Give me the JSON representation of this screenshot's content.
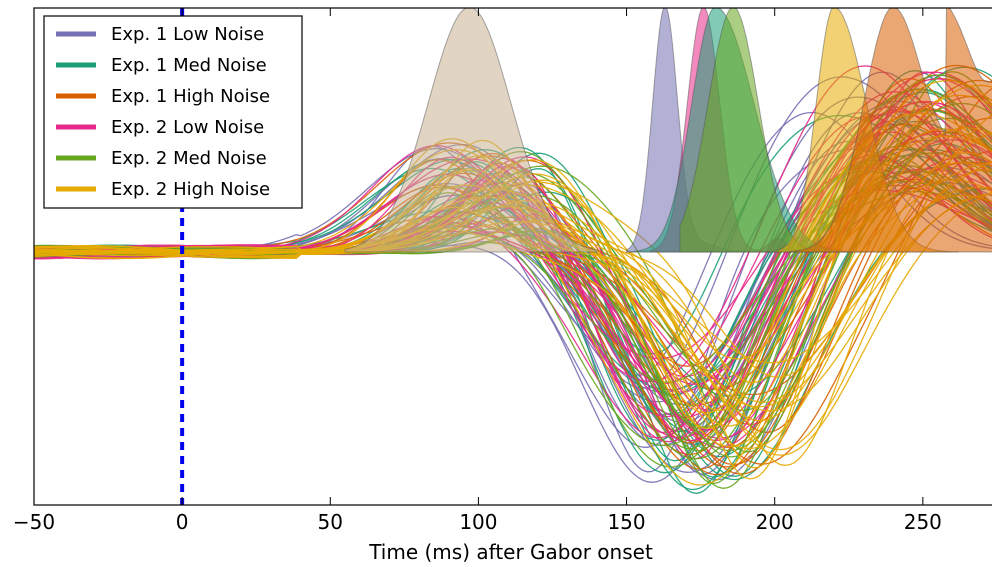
{
  "chart_data": {
    "type": "line",
    "xlabel": "Time (ms) after Gabor onset",
    "ylabel": "",
    "xlim": [
      -50,
      275
    ],
    "xticks": [
      -50,
      0,
      50,
      100,
      150,
      200,
      250
    ],
    "xtick_labels": [
      "−50",
      "0",
      "50",
      "100",
      "150",
      "200",
      "250"
    ],
    "onset_marker": {
      "x": 0,
      "style": "dashed",
      "color": "#0000ee"
    },
    "legend": {
      "placement": "top-left",
      "entries": [
        {
          "label": "Exp. 1 Low Noise",
          "color": "#7570b3"
        },
        {
          "label": "Exp. 1 Med Noise",
          "color": "#1b9e77"
        },
        {
          "label": "Exp. 1 High Noise",
          "color": "#d95f02"
        },
        {
          "label": "Exp. 2 Low Noise",
          "color": "#e7298a"
        },
        {
          "label": "Exp. 2 Med Noise",
          "color": "#66a61e"
        },
        {
          "label": "Exp. 2 High Noise",
          "color": "#e6ab02"
        }
      ]
    },
    "density_peaks": [
      {
        "color": "#c9b08f",
        "peak_x": 97
      },
      {
        "color": "#7570b3",
        "peak_x": 163
      },
      {
        "color": "#e7298a",
        "peak_x": 176
      },
      {
        "color": "#1b9e77",
        "peak_x": 180
      },
      {
        "color": "#66a61e",
        "peak_x": 186
      },
      {
        "color": "#e6ab02",
        "peak_x": 220
      },
      {
        "color": "#d95f02",
        "peak_x": 240
      }
    ],
    "series": [
      {
        "color": "#7570b3",
        "count": 16,
        "dip_x": 167
      },
      {
        "color": "#1b9e77",
        "count": 16,
        "dip_x": 174
      },
      {
        "color": "#d95f02",
        "count": 16,
        "dip_x": 185
      },
      {
        "color": "#e7298a",
        "count": 20,
        "dip_x": 170
      },
      {
        "color": "#66a61e",
        "count": 16,
        "dip_x": 178
      },
      {
        "color": "#e6ab02",
        "count": 20,
        "dip_x": 190
      }
    ]
  }
}
